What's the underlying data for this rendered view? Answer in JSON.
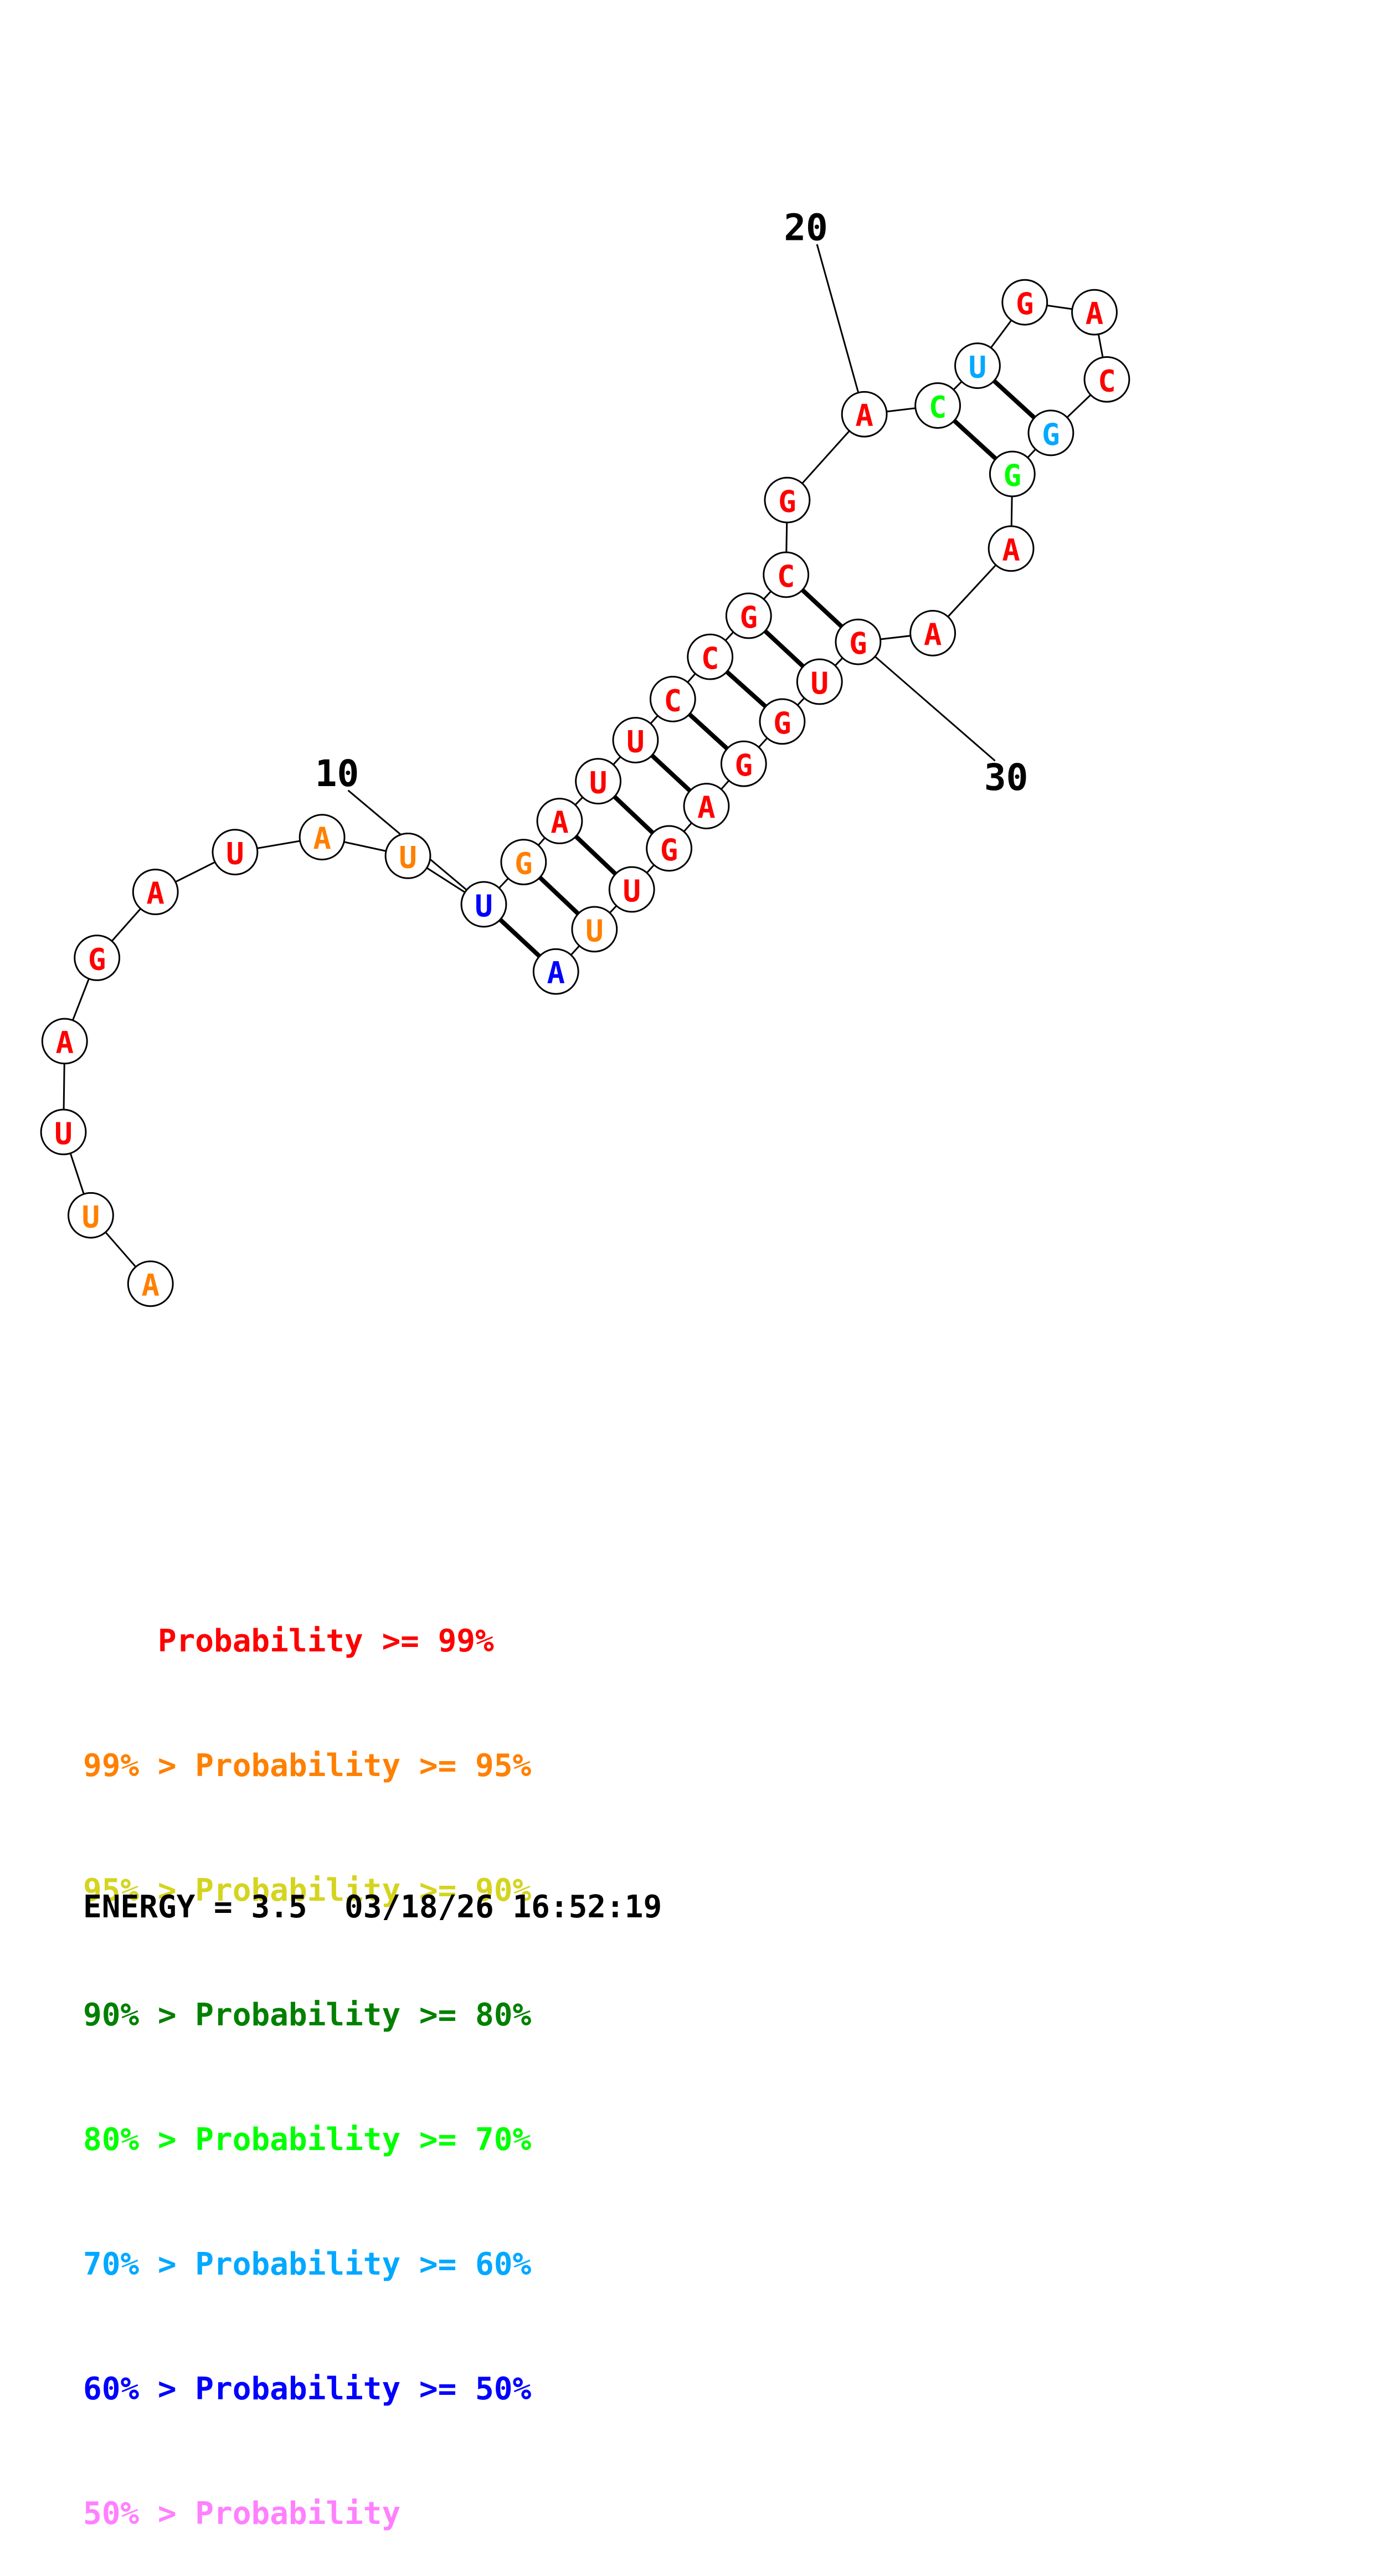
{
  "colors": {
    "p99": "#ff0000",
    "p95": "#ff8000",
    "p90": "#d4d420",
    "p80": "#008000",
    "p70": "#00ff00",
    "p60": "#00a8ff",
    "p50": "#0000ff",
    "plow": "#ff80ff"
  },
  "structure": {
    "sequence": [
      "A",
      "U",
      "U",
      "A",
      "G",
      "A",
      "U",
      "A",
      "U",
      "U",
      "G",
      "A",
      "U",
      "U",
      "C",
      "C",
      "G",
      "C",
      "G",
      "A",
      "C",
      "U",
      "G",
      "A",
      "C",
      "G",
      "G",
      "A",
      "A",
      "G",
      "U",
      "G",
      "G",
      "A",
      "G",
      "U",
      "U",
      "A"
    ],
    "nucleotides": [
      {
        "base": "A",
        "prob": "p95"
      },
      {
        "base": "U",
        "prob": "p95"
      },
      {
        "base": "U",
        "prob": "p99"
      },
      {
        "base": "A",
        "prob": "p99"
      },
      {
        "base": "G",
        "prob": "p99"
      },
      {
        "base": "A",
        "prob": "p99"
      },
      {
        "base": "U",
        "prob": "p99"
      },
      {
        "base": "A",
        "prob": "p95"
      },
      {
        "base": "U",
        "prob": "p95"
      },
      {
        "base": "U",
        "prob": "p50"
      },
      {
        "base": "G",
        "prob": "p95"
      },
      {
        "base": "A",
        "prob": "p99"
      },
      {
        "base": "U",
        "prob": "p99"
      },
      {
        "base": "U",
        "prob": "p99"
      },
      {
        "base": "C",
        "prob": "p99"
      },
      {
        "base": "C",
        "prob": "p99"
      },
      {
        "base": "G",
        "prob": "p99"
      },
      {
        "base": "C",
        "prob": "p99"
      },
      {
        "base": "G",
        "prob": "p99"
      },
      {
        "base": "A",
        "prob": "p99"
      },
      {
        "base": "C",
        "prob": "p70"
      },
      {
        "base": "U",
        "prob": "p60"
      },
      {
        "base": "G",
        "prob": "p99"
      },
      {
        "base": "A",
        "prob": "p99"
      },
      {
        "base": "C",
        "prob": "p99"
      },
      {
        "base": "G",
        "prob": "p60"
      },
      {
        "base": "G",
        "prob": "p70"
      },
      {
        "base": "A",
        "prob": "p99"
      },
      {
        "base": "A",
        "prob": "p99"
      },
      {
        "base": "G",
        "prob": "p99"
      },
      {
        "base": "U",
        "prob": "p99"
      },
      {
        "base": "G",
        "prob": "p99"
      },
      {
        "base": "G",
        "prob": "p99"
      },
      {
        "base": "A",
        "prob": "p99"
      },
      {
        "base": "G",
        "prob": "p99"
      },
      {
        "base": "U",
        "prob": "p99"
      },
      {
        "base": "U",
        "prob": "p95"
      },
      {
        "base": "A",
        "prob": "p50"
      }
    ],
    "pairs": [
      [
        10,
        38
      ],
      [
        11,
        37
      ],
      [
        12,
        36
      ],
      [
        13,
        35
      ],
      [
        14,
        34
      ],
      [
        15,
        33
      ],
      [
        16,
        32
      ],
      [
        17,
        31
      ],
      [
        18,
        30
      ],
      [
        21,
        27
      ],
      [
        22,
        26
      ]
    ],
    "position_labels": [
      {
        "text": "10",
        "target": 10
      },
      {
        "text": "20",
        "target": 20
      },
      {
        "text": "30",
        "target": 30
      }
    ]
  },
  "legend": [
    {
      "prefix": "    ",
      "text": "Probability >= 99%",
      "color_key": "p99"
    },
    {
      "prefix": "99% > ",
      "text": "Probability >= 95%",
      "color_key": "p95"
    },
    {
      "prefix": "95% > ",
      "text": "Probability >= 90%",
      "color_key": "p90"
    },
    {
      "prefix": "90% > ",
      "text": "Probability >= 80%",
      "color_key": "p80"
    },
    {
      "prefix": "80% > ",
      "text": "Probability >= 70%",
      "color_key": "p70"
    },
    {
      "prefix": "70% > ",
      "text": "Probability >= 60%",
      "color_key": "p60"
    },
    {
      "prefix": "60% > ",
      "text": "Probability >= 50%",
      "color_key": "p50"
    },
    {
      "prefix": "50% > ",
      "text": "Probability",
      "color_key": "plow"
    }
  ],
  "footer": {
    "energy": "ENERGY = 3.5  03/18/26 16:52:19"
  }
}
